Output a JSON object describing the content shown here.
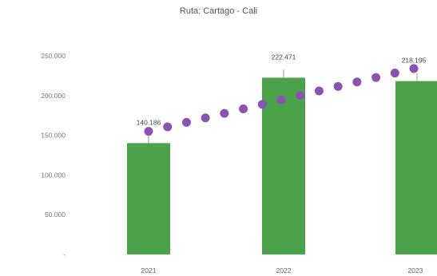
{
  "chart_data": {
    "type": "bar",
    "title": "Ruta: Cartago - Cali",
    "categories": [
      "2021",
      "2022",
      "2023"
    ],
    "series": [
      {
        "values": [
          140186,
          222471,
          218195
        ],
        "data_labels": [
          "140.186",
          "222.471",
          "218.195"
        ],
        "color": "#4aa34a"
      }
    ],
    "trend_dots": {
      "color": "#8b52b3",
      "count": 15,
      "start": 155000,
      "end": 234000
    },
    "ylim": [
      0,
      250000
    ],
    "y_ticks": [
      0,
      50000,
      100000,
      150000,
      200000,
      250000
    ],
    "y_tick_labels": [
      "-",
      "50.000",
      "100.000",
      "150.000",
      "200.000",
      "250.000"
    ],
    "xlabel": "",
    "ylabel": "",
    "grid": false,
    "legend": "none"
  }
}
